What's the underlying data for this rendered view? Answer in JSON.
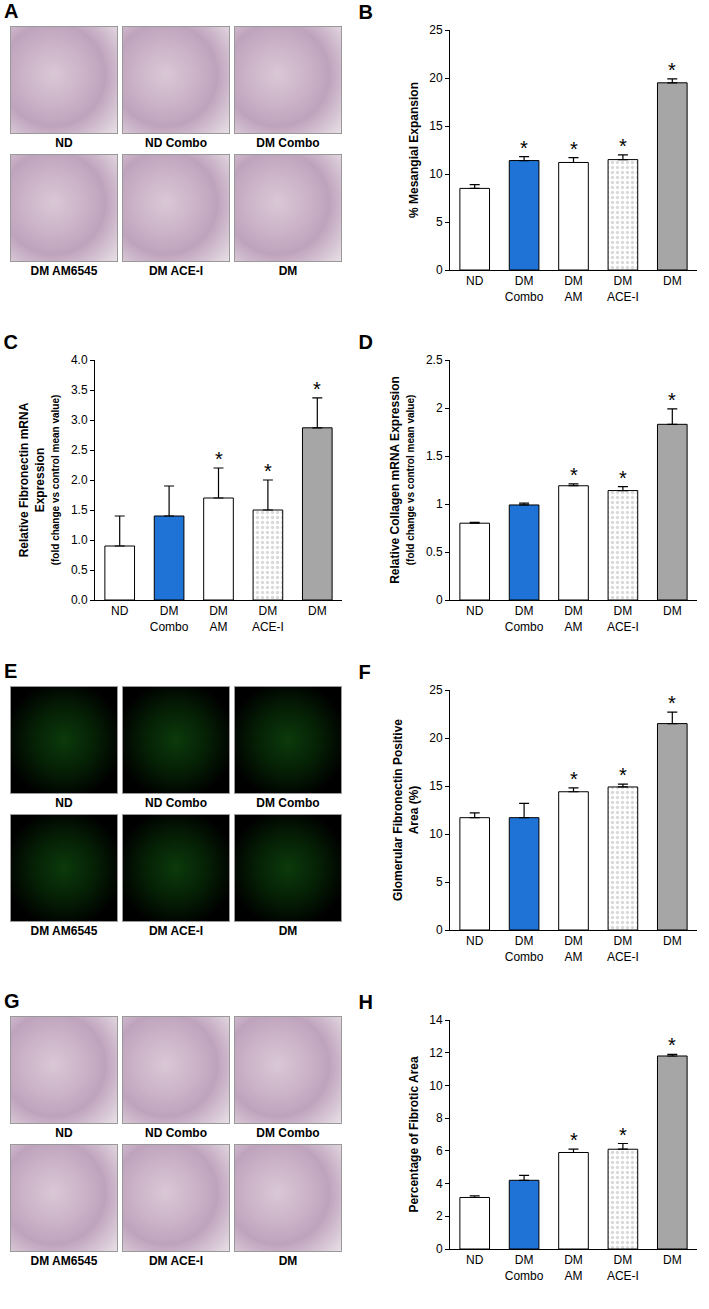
{
  "chart_data": [
    {
      "type": "bar",
      "title": "B",
      "ylabel": [
        "% Mesangial Expansion"
      ],
      "categories": [
        "ND",
        "DM Combo",
        "DM AM",
        "DM ACE-I",
        "DM"
      ],
      "values": [
        8.5,
        11.4,
        11.2,
        11.5,
        19.5
      ],
      "errors": [
        0.4,
        0.4,
        0.5,
        0.5,
        0.4
      ],
      "colors": [
        "#ffffff",
        "#1f73d6",
        "#ffffff",
        "#d9d9d9",
        "#a6a6a6"
      ],
      "ylim": [
        0,
        25
      ],
      "yticks": [
        0,
        5,
        10,
        15,
        20,
        25
      ],
      "annotations": [
        {
          "category": "DM Combo",
          "text": "*"
        },
        {
          "category": "DM AM",
          "text": "*"
        },
        {
          "category": "DM ACE-I",
          "text": "*"
        },
        {
          "category": "DM",
          "text": "*"
        }
      ]
    },
    {
      "type": "bar",
      "title": "C",
      "ylabel": [
        "Relative Fibronectin mRNA",
        "Expression",
        "(fold change vs control mean value)"
      ],
      "categories": [
        "ND",
        "DM Combo",
        "DM AM",
        "DM ACE-I",
        "DM"
      ],
      "values": [
        0.9,
        1.4,
        1.7,
        1.5,
        2.87
      ],
      "errors": [
        0.5,
        0.5,
        0.5,
        0.5,
        0.5
      ],
      "colors": [
        "#ffffff",
        "#1f73d6",
        "#ffffff",
        "#d9d9d9",
        "#a6a6a6"
      ],
      "ylim": [
        0,
        4
      ],
      "yticks": [
        {
          "value": 0,
          "label": "0.0"
        },
        {
          "value": 0.5,
          "label": "0.5"
        },
        {
          "value": 1,
          "label": "1.0"
        },
        {
          "value": 1.5,
          "label": "1.5"
        },
        {
          "value": 2,
          "label": "2.0"
        },
        {
          "value": 2.5,
          "label": "2.5"
        },
        {
          "value": 3,
          "label": "3.0"
        },
        {
          "value": 3.5,
          "label": "3.5"
        },
        {
          "value": 4,
          "label": "4.0"
        }
      ],
      "annotations": [
        {
          "category": "DM AM",
          "text": "*"
        },
        {
          "category": "DM ACE-I",
          "text": "*"
        },
        {
          "category": "DM",
          "text": "*"
        }
      ]
    },
    {
      "type": "bar",
      "title": "D",
      "ylabel": [
        "Relative Collagen mRNA Expression",
        "(fold change vs control mean value)"
      ],
      "categories": [
        "ND",
        "DM Combo",
        "DM AM",
        "DM ACE-I",
        "DM"
      ],
      "values": [
        0.8,
        0.99,
        1.19,
        1.14,
        1.83
      ],
      "errors": [
        0.01,
        0.02,
        0.02,
        0.04,
        0.16
      ],
      "colors": [
        "#ffffff",
        "#1f73d6",
        "#ffffff",
        "#d9d9d9",
        "#a6a6a6"
      ],
      "ylim": [
        0,
        2.5
      ],
      "yticks": [
        0,
        0.5,
        1,
        1.5,
        2,
        2.5
      ],
      "annotations": [
        {
          "category": "DM AM",
          "text": "*"
        },
        {
          "category": "DM ACE-I",
          "text": "*"
        },
        {
          "category": "DM",
          "text": "*"
        }
      ]
    },
    {
      "type": "bar",
      "title": "F",
      "ylabel": [
        "Glomerular Fibronectin Positive",
        "Area (%)"
      ],
      "categories": [
        "ND",
        "DM Combo",
        "DM AM",
        "DM ACE-I",
        "DM"
      ],
      "values": [
        11.7,
        11.7,
        14.4,
        14.9,
        21.5
      ],
      "errors": [
        0.5,
        1.5,
        0.4,
        0.3,
        1.2
      ],
      "colors": [
        "#ffffff",
        "#1f73d6",
        "#ffffff",
        "#d9d9d9",
        "#a6a6a6"
      ],
      "ylim": [
        0,
        25
      ],
      "yticks": [
        0,
        5,
        10,
        15,
        20,
        25
      ],
      "annotations": [
        {
          "category": "DM AM",
          "text": "*"
        },
        {
          "category": "DM ACE-I",
          "text": "*"
        },
        {
          "category": "DM",
          "text": "*"
        }
      ]
    },
    {
      "type": "bar",
      "title": "H",
      "ylabel": [
        "Percentage of Fibrotic Area"
      ],
      "categories": [
        "ND",
        "DM Combo",
        "DM AM",
        "DM ACE-I",
        "DM"
      ],
      "values": [
        3.15,
        4.2,
        5.9,
        6.1,
        11.8
      ],
      "errors": [
        0.1,
        0.3,
        0.2,
        0.35,
        0.1
      ],
      "colors": [
        "#ffffff",
        "#1f73d6",
        "#ffffff",
        "#d9d9d9",
        "#a6a6a6"
      ],
      "ylim": [
        0,
        14
      ],
      "yticks": [
        0,
        2,
        4,
        6,
        8,
        10,
        12,
        14
      ],
      "annotations": [
        {
          "category": "DM AM",
          "text": "*"
        },
        {
          "category": "DM ACE-I",
          "text": "*"
        },
        {
          "category": "DM",
          "text": "*"
        }
      ]
    }
  ],
  "image_panels": [
    {
      "label": "A",
      "images": [
        "ND",
        "ND Combo",
        "DM Combo",
        "DM AM6545",
        "DM ACE-I",
        "DM"
      ]
    },
    {
      "label": "E",
      "images": [
        "ND",
        "ND Combo",
        "DM Combo",
        "DM AM6545",
        "DM ACE-I",
        "DM"
      ]
    },
    {
      "label": "G",
      "images": [
        "ND",
        "ND Combo",
        "DM Combo",
        "DM AM6545",
        "DM ACE-I",
        "DM"
      ]
    }
  ]
}
